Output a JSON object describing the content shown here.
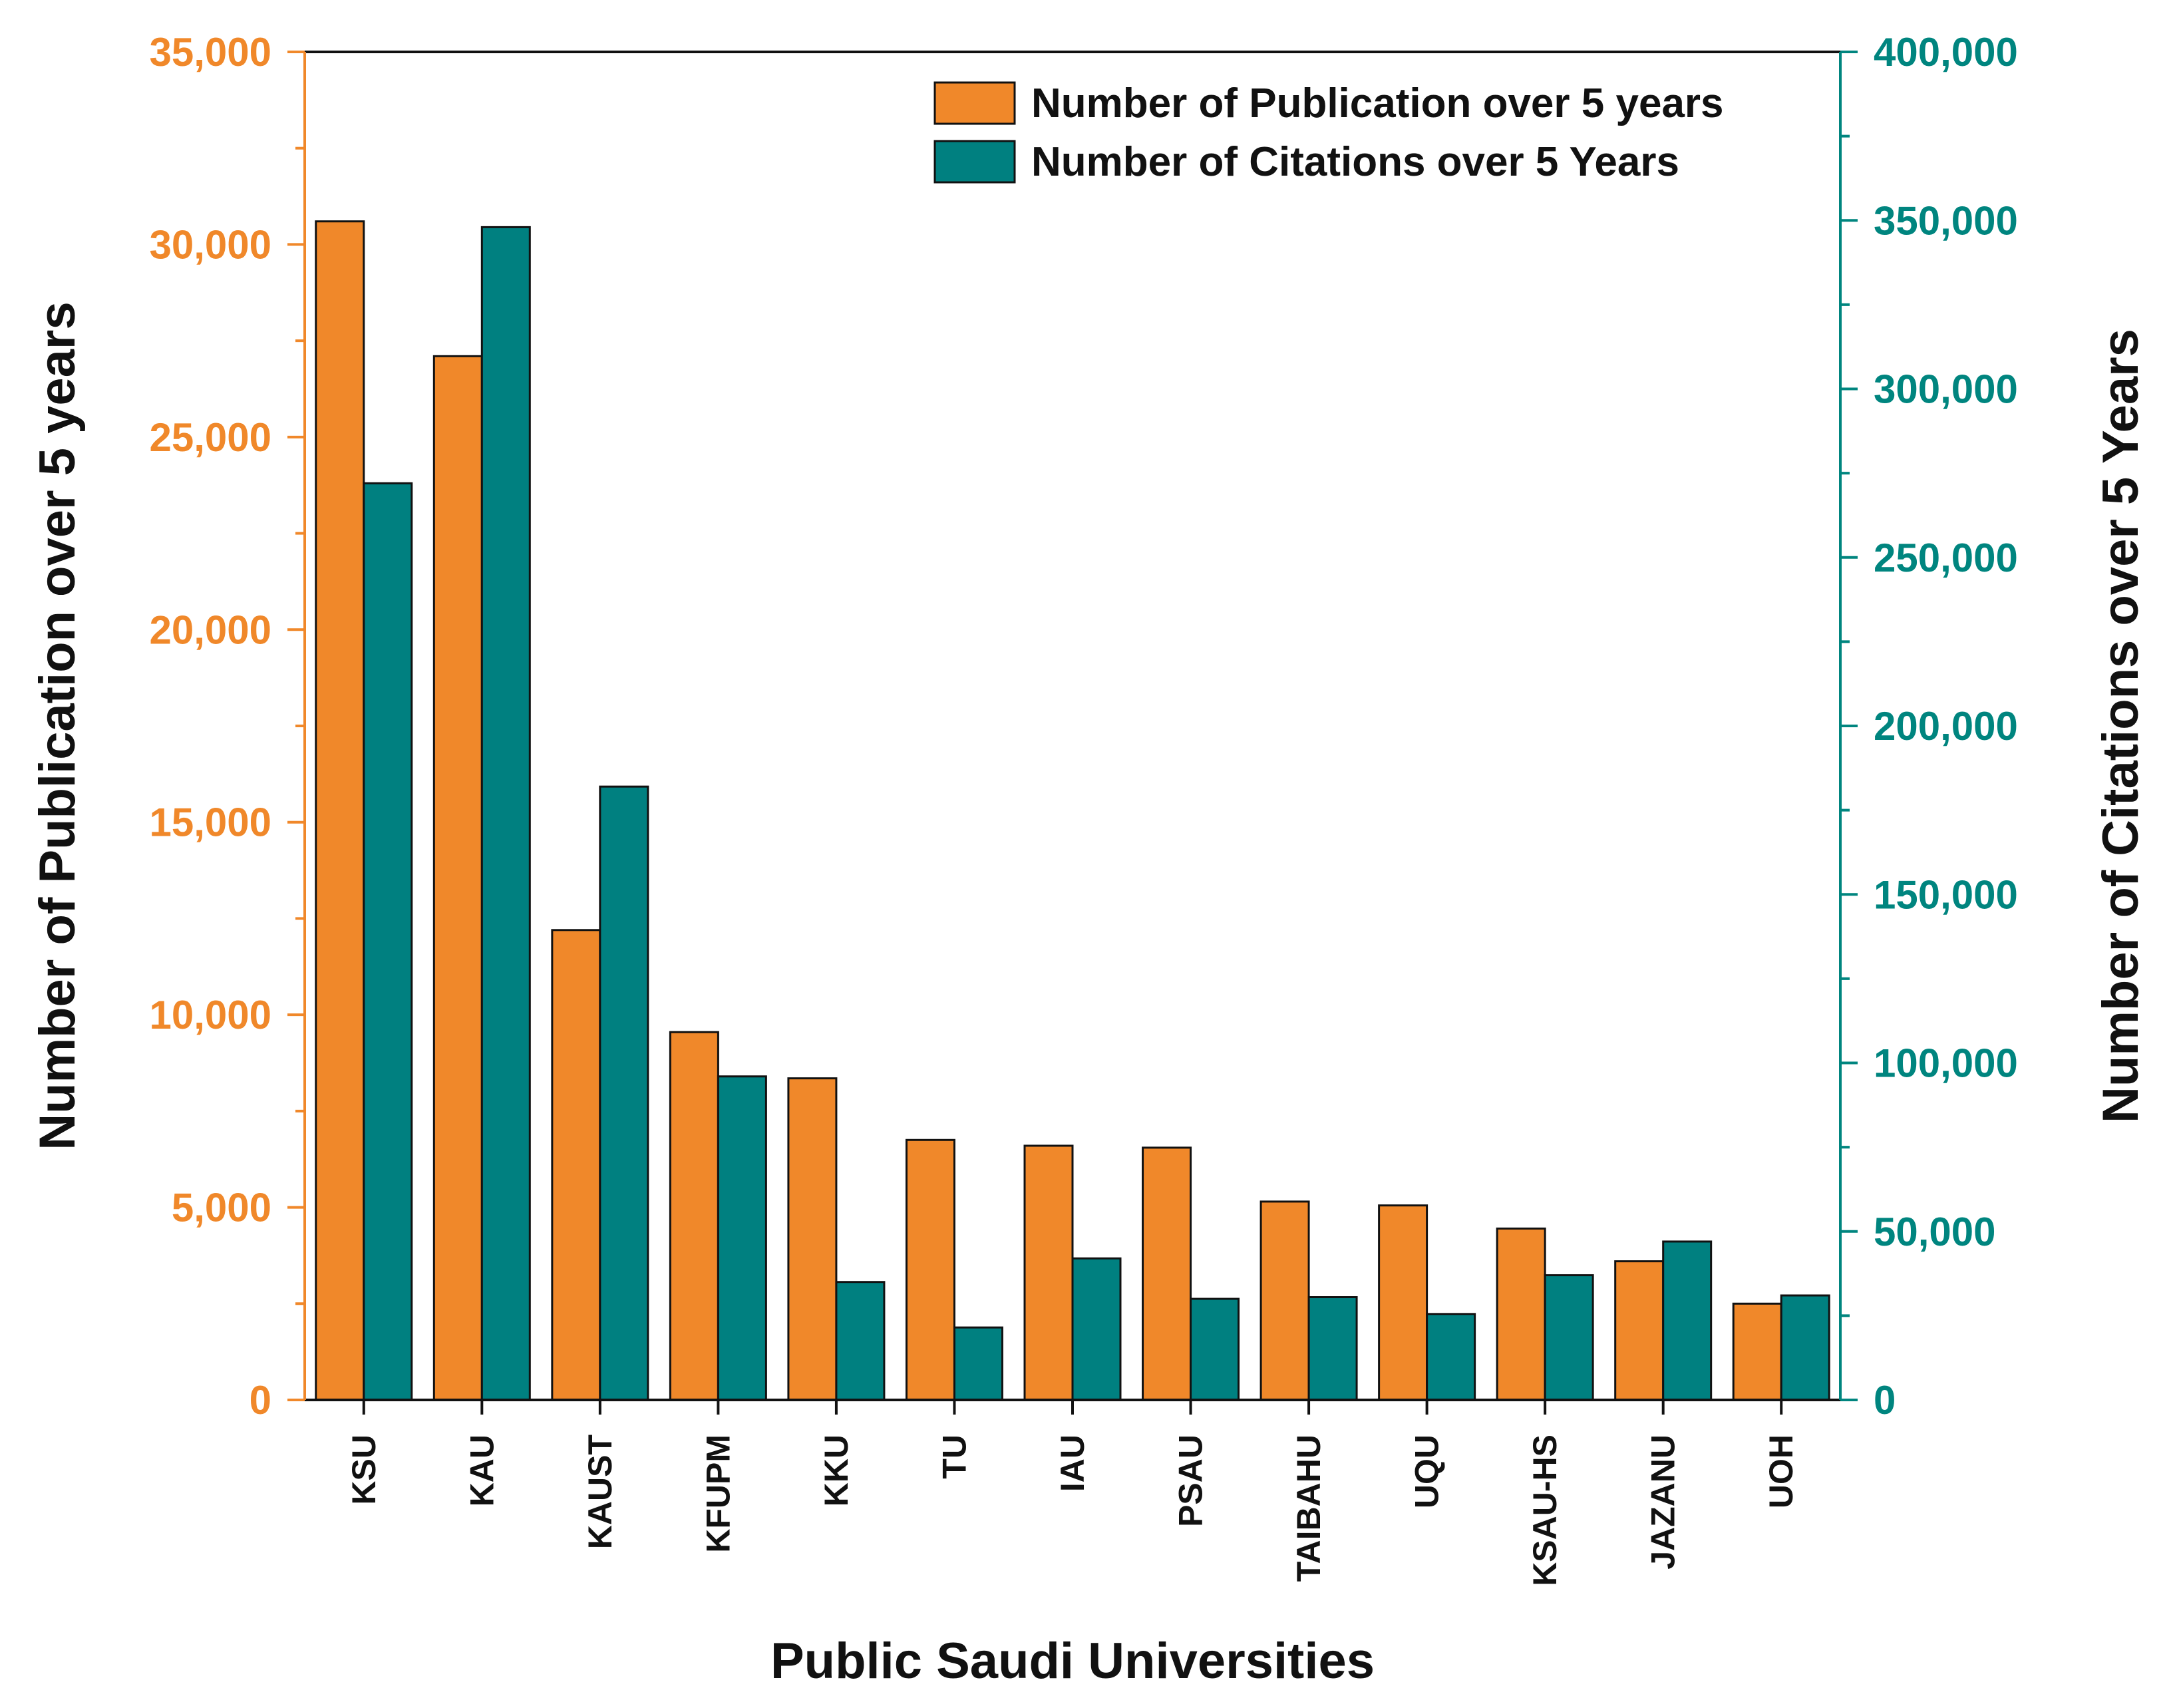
{
  "chart_data": {
    "type": "bar",
    "title": "",
    "xlabel": "Public Saudi Universities",
    "ylabel_left": "Number of Publication over 5 years",
    "ylabel_right": "Number of Citations over 5 Years",
    "categories": [
      "KSU",
      "KAU",
      "KAUST",
      "KFUPM",
      "KKU",
      "TU",
      "IAU",
      "PSAU",
      "TAIBAHU",
      "UQU",
      "KSAU-HS",
      "JAZANU",
      "UOH"
    ],
    "series": [
      {
        "name": "Number of Publication over 5 years",
        "axis": "left",
        "color": "#F0882A",
        "values": [
          30600,
          27100,
          12200,
          9550,
          8350,
          6750,
          6600,
          6550,
          5150,
          5050,
          4450,
          3600,
          2500
        ]
      },
      {
        "name": "Number of Citations over 5 Years",
        "axis": "right",
        "color": "#008080",
        "values": [
          272000,
          348000,
          182000,
          96000,
          35000,
          21500,
          42000,
          30000,
          30500,
          25500,
          37000,
          47000,
          31000
        ]
      }
    ],
    "ylim_left": [
      0,
      35000
    ],
    "ylim_right": [
      0,
      400000
    ],
    "yticks_left": [
      "0",
      "5,000",
      "10,000",
      "15,000",
      "20,000",
      "25,000",
      "30,000",
      "35,000"
    ],
    "yticks_right": [
      "0",
      "50,000",
      "100,000",
      "150,000",
      "200,000",
      "250,000",
      "300,000",
      "350,000",
      "400,000"
    ],
    "left_axis_color": "#F0882A",
    "right_axis_color": "#00857F",
    "grid": false,
    "legend_position": "top-right"
  }
}
